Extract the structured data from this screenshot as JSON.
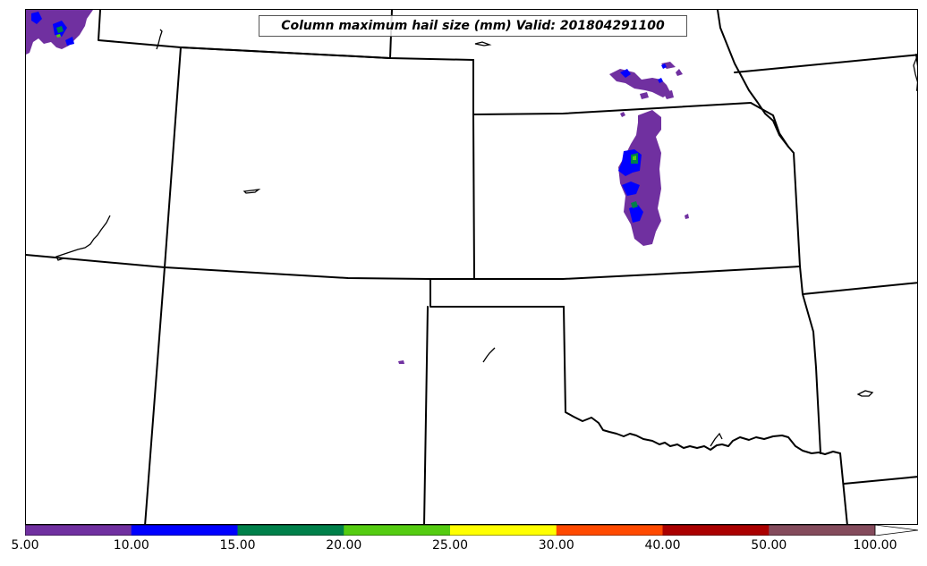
{
  "title": "Column maximum hail size (mm) Valid: 201804291100",
  "colorbar": {
    "bins": [
      {
        "from": "5.00",
        "to": "10.00",
        "color": "#7030a0"
      },
      {
        "from": "10.00",
        "to": "15.00",
        "color": "#0000ff"
      },
      {
        "from": "15.00",
        "to": "20.00",
        "color": "#00804a"
      },
      {
        "from": "20.00",
        "to": "25.00",
        "color": "#55cc11"
      },
      {
        "from": "25.00",
        "to": "30.00",
        "color": "#ffff00"
      },
      {
        "from": "30.00",
        "to": "40.00",
        "color": "#ff4a00"
      },
      {
        "from": "40.00",
        "to": "50.00",
        "color": "#aa0000"
      },
      {
        "from": "50.00",
        "to": "100.00",
        "color": "#844b5c"
      }
    ],
    "extend_color": "#ffffff",
    "tick_labels": [
      "5.00",
      "10.00",
      "15.00",
      "20.00",
      "25.00",
      "30.00",
      "40.00",
      "50.00",
      "100.00"
    ]
  },
  "map": {
    "border_color": "#000000",
    "hail_colors": {
      "5-10": "#7030a0",
      "10-15": "#0000ff",
      "15-20": "#00804a",
      "20-25": "#55cc11"
    }
  }
}
